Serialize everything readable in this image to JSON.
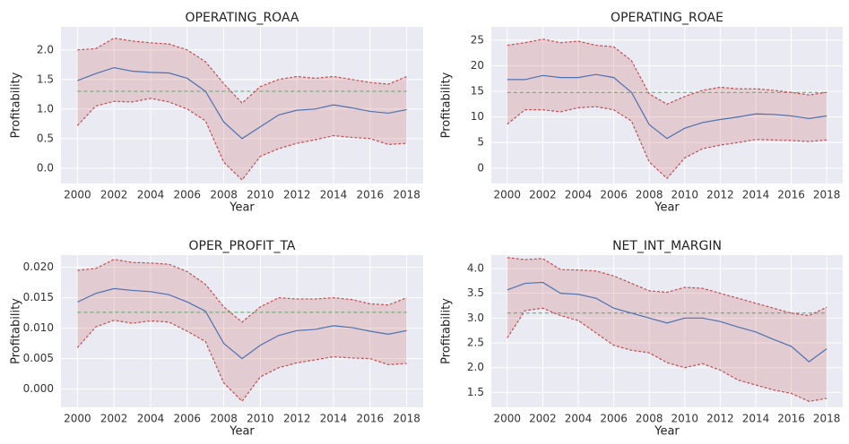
{
  "chart_data": [
    {
      "type": "line",
      "title": "OPERATING_ROAA",
      "xlabel": "Year",
      "ylabel": "Profitability",
      "x": [
        2000,
        2001,
        2002,
        2003,
        2004,
        2005,
        2006,
        2007,
        2008,
        2009,
        2010,
        2011,
        2012,
        2013,
        2014,
        2015,
        2016,
        2017,
        2018
      ],
      "series": [
        {
          "color": "#4c72b0",
          "style": "solid",
          "values": [
            1.48,
            1.6,
            1.7,
            1.64,
            1.62,
            1.61,
            1.52,
            1.3,
            0.78,
            0.5,
            0.7,
            0.9,
            0.98,
            1.0,
            1.07,
            1.02,
            0.96,
            0.93,
            0.99
          ]
        },
        {
          "color": "#c44e52",
          "style": "dashed",
          "values": [
            2.0,
            2.02,
            2.2,
            2.15,
            2.12,
            2.1,
            2.0,
            1.8,
            1.43,
            1.1,
            1.38,
            1.5,
            1.55,
            1.52,
            1.55,
            1.5,
            1.45,
            1.42,
            1.55
          ]
        },
        {
          "color": "#c44e52",
          "style": "dashed",
          "values": [
            0.72,
            1.05,
            1.13,
            1.12,
            1.18,
            1.12,
            1.0,
            0.8,
            0.1,
            -0.2,
            0.2,
            0.33,
            0.42,
            0.48,
            0.55,
            0.52,
            0.5,
            0.4,
            0.42
          ]
        }
      ],
      "fill_color": "#c44e52",
      "hline": 1.3,
      "hline_color": "#55a868",
      "xlim": [
        1999.1,
        2018.9
      ],
      "xticks": [
        2000,
        2002,
        2004,
        2006,
        2008,
        2010,
        2012,
        2014,
        2016,
        2018
      ],
      "ylim": [
        -0.26,
        2.39
      ],
      "yticks": [
        {
          "value": 0,
          "label": "0.0"
        },
        0.5,
        {
          "value": 1,
          "label": "1.0"
        },
        1.5,
        {
          "value": 2,
          "label": "2.0"
        }
      ],
      "grid": true
    },
    {
      "type": "line",
      "title": "OPERATING_ROAE",
      "xlabel": "Year",
      "ylabel": "Profitability",
      "x": [
        2000,
        2001,
        2002,
        2003,
        2004,
        2005,
        2006,
        2007,
        2008,
        2009,
        2010,
        2011,
        2012,
        2013,
        2014,
        2015,
        2016,
        2017,
        2018
      ],
      "series": [
        {
          "color": "#4c72b0",
          "style": "solid",
          "values": [
            17.3,
            17.3,
            18.1,
            17.7,
            17.7,
            18.3,
            17.7,
            14.8,
            8.5,
            5.8,
            7.8,
            8.9,
            9.5,
            10.0,
            10.6,
            10.5,
            10.2,
            9.7,
            10.2
          ]
        },
        {
          "color": "#c44e52",
          "style": "dashed",
          "values": [
            24,
            24.5,
            25.2,
            24.5,
            24.8,
            24,
            23.7,
            21,
            14.5,
            12.5,
            14,
            15.2,
            15.8,
            15.5,
            15.5,
            15.2,
            14.8,
            14.3,
            14.8
          ]
        },
        {
          "color": "#c44e52",
          "style": "dashed",
          "values": [
            8.6,
            11.4,
            11.4,
            11.0,
            11.8,
            12.0,
            11.4,
            9.2,
            1.2,
            -2.0,
            2.0,
            3.8,
            4.5,
            5.0,
            5.6,
            5.5,
            5.4,
            5.2,
            5.5
          ]
        }
      ],
      "fill_color": "#c44e52",
      "hline": 14.8,
      "hline_color": "#55a868",
      "xlim": [
        1999.1,
        2018.9
      ],
      "xticks": [
        2000,
        2002,
        2004,
        2006,
        2008,
        2010,
        2012,
        2014,
        2016,
        2018
      ],
      "ylim": [
        -3,
        27.6
      ],
      "yticks": [
        0,
        5,
        10,
        15,
        20,
        25
      ],
      "grid": true
    },
    {
      "type": "line",
      "title": "OPER_PROFIT_TA",
      "xlabel": "Year",
      "ylabel": "Profitability",
      "x": [
        2000,
        2001,
        2002,
        2003,
        2004,
        2005,
        2006,
        2007,
        2008,
        2009,
        2010,
        2011,
        2012,
        2013,
        2014,
        2015,
        2016,
        2017,
        2018
      ],
      "series": [
        {
          "color": "#4c72b0",
          "style": "solid",
          "values": [
            0.0143,
            0.0157,
            0.0165,
            0.0162,
            0.016,
            0.0155,
            0.0143,
            0.0128,
            0.0075,
            0.005,
            0.0072,
            0.0088,
            0.0096,
            0.0098,
            0.0104,
            0.0101,
            0.0095,
            0.009,
            0.0096
          ]
        },
        {
          "color": "#c44e52",
          "style": "dashed",
          "values": [
            0.0195,
            0.0198,
            0.0213,
            0.0208,
            0.0207,
            0.0205,
            0.0193,
            0.0172,
            0.0135,
            0.011,
            0.0135,
            0.015,
            0.0148,
            0.0148,
            0.015,
            0.0147,
            0.014,
            0.0138,
            0.015
          ]
        },
        {
          "color": "#c44e52",
          "style": "dashed",
          "values": [
            0.0068,
            0.0102,
            0.0113,
            0.0108,
            0.0112,
            0.011,
            0.0095,
            0.0078,
            0.001,
            -0.002,
            0.002,
            0.0035,
            0.0043,
            0.0048,
            0.0053,
            0.0051,
            0.005,
            0.004,
            0.0042
          ]
        }
      ],
      "fill_color": "#c44e52",
      "hline": 0.0126,
      "hline_color": "#55a868",
      "xlim": [
        1999.1,
        2018.9
      ],
      "xticks": [
        2000,
        2002,
        2004,
        2006,
        2008,
        2010,
        2012,
        2014,
        2016,
        2018
      ],
      "ylim": [
        -0.003,
        0.022
      ],
      "yticks": [
        {
          "value": 0,
          "label": "0.000"
        },
        0.005,
        {
          "value": 0.01,
          "label": "0.010"
        },
        0.015,
        {
          "value": 0.02,
          "label": "0.020"
        }
      ],
      "grid": true
    },
    {
      "type": "line",
      "title": "NET_INT_MARGIN",
      "xlabel": "Year",
      "ylabel": "Profitability",
      "x": [
        2000,
        2001,
        2002,
        2003,
        2004,
        2005,
        2006,
        2007,
        2008,
        2009,
        2010,
        2011,
        2012,
        2013,
        2014,
        2015,
        2016,
        2017,
        2018
      ],
      "series": [
        {
          "color": "#4c72b0",
          "style": "solid",
          "values": [
            3.57,
            3.7,
            3.72,
            3.5,
            3.48,
            3.4,
            3.2,
            3.1,
            3.0,
            2.9,
            3.0,
            3.0,
            2.93,
            2.82,
            2.72,
            2.57,
            2.43,
            2.12,
            2.38
          ]
        },
        {
          "color": "#c44e52",
          "style": "dashed",
          "values": [
            4.22,
            4.18,
            4.2,
            3.98,
            3.97,
            3.95,
            3.85,
            3.7,
            3.55,
            3.52,
            3.62,
            3.6,
            3.5,
            3.4,
            3.3,
            3.2,
            3.1,
            3.05,
            3.22
          ]
        },
        {
          "color": "#c44e52",
          "style": "dashed",
          "values": [
            2.6,
            3.15,
            3.2,
            3.05,
            2.95,
            2.7,
            2.45,
            2.35,
            2.3,
            2.1,
            2.0,
            2.08,
            1.95,
            1.75,
            1.65,
            1.55,
            1.48,
            1.32,
            1.38
          ]
        }
      ],
      "fill_color": "#c44e52",
      "hline": 3.1,
      "hline_color": "#55a868",
      "xlim": [
        1999.1,
        2018.9
      ],
      "xticks": [
        2000,
        2002,
        2004,
        2006,
        2008,
        2010,
        2012,
        2014,
        2016,
        2018
      ],
      "ylim": [
        1.2,
        4.27
      ],
      "yticks": [
        1.5,
        {
          "value": 2,
          "label": "2.0"
        },
        2.5,
        {
          "value": 3,
          "label": "3.0"
        },
        3.5,
        {
          "value": 4,
          "label": "4.0"
        }
      ],
      "grid": true
    }
  ]
}
